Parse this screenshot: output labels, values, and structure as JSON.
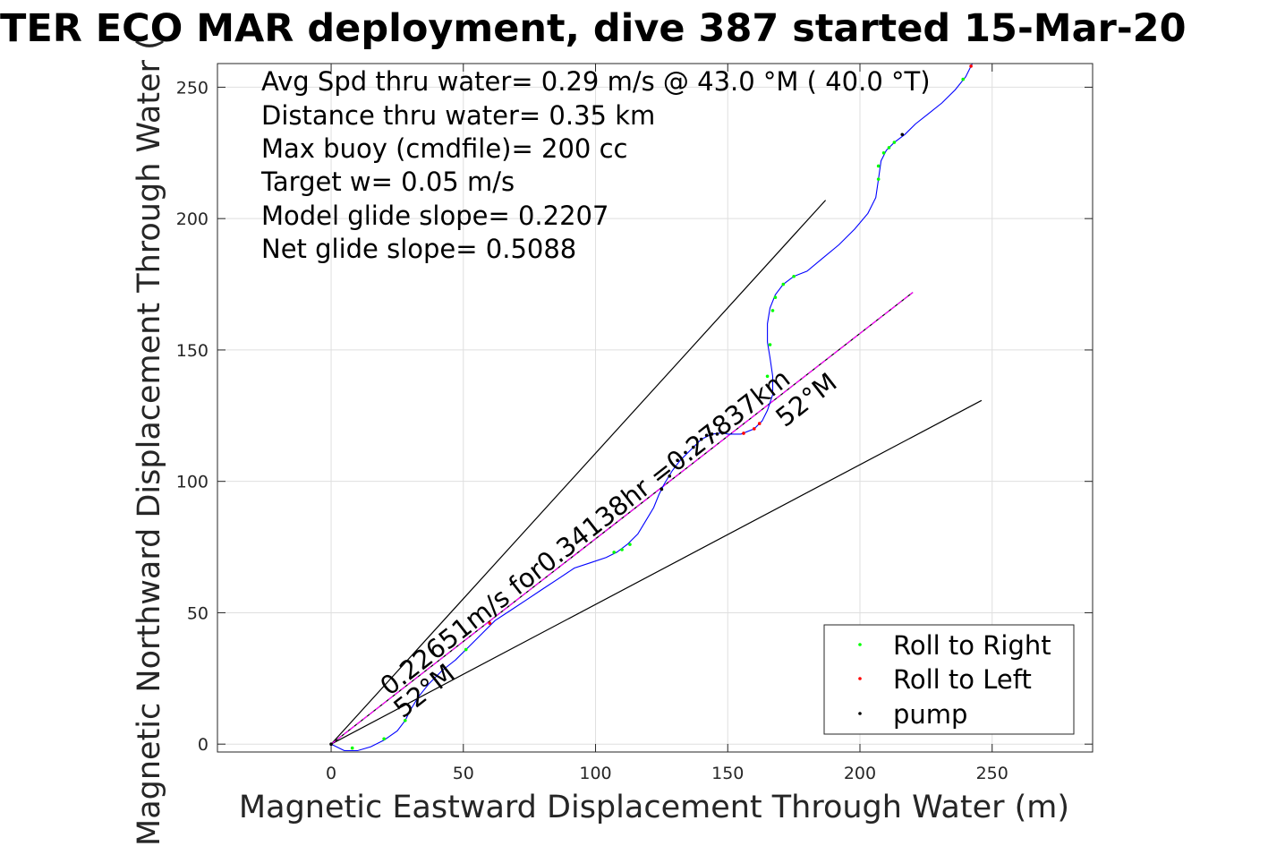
{
  "chart_data": {
    "type": "line",
    "title": "TER ECO MAR deployment, dive 387 started 15-Mar-20",
    "xlabel": "Magnetic Eastward Displacement Through Water (m)",
    "ylabel": "Magnetic Northward Displacement Through Water (",
    "xlim": [
      -43,
      288
    ],
    "ylim": [
      -3,
      259
    ],
    "xticks": [
      0,
      50,
      100,
      150,
      200,
      250
    ],
    "yticks": [
      0,
      50,
      100,
      150,
      200,
      250
    ],
    "grid": true,
    "stats": [
      "Avg Spd thru water=  0.29 m/s @  43.0 °M ( 40.0 °T)",
      "Distance thru water=  0.35 km",
      "Max buoy (cmdfile)= 200 cc",
      "Target w= 0.05 m/s",
      "Model glide slope= 0.2207",
      "Net glide slope= 0.5088"
    ],
    "annotations": {
      "heading_main": "0.22651m/s for0.34138hr =0.27837km",
      "heading_upper": "52°M",
      "heading_lower": "52°M"
    },
    "legend": {
      "placement": "bottom-right",
      "entries": [
        {
          "label": "Roll to Right",
          "color": "#00ff00"
        },
        {
          "label": "Roll to Left",
          "color": "#ff0000"
        },
        {
          "label": "pump",
          "color": "#000000"
        }
      ]
    },
    "track_color": "#0000ff",
    "heading_line_color": "#ff00ff",
    "cone_line_color": "#000000",
    "track": [
      [
        0,
        0
      ],
      [
        2,
        -1
      ],
      [
        5,
        -2.5
      ],
      [
        10,
        -2.5
      ],
      [
        15,
        -1
      ],
      [
        20,
        1.5
      ],
      [
        25,
        5
      ],
      [
        28,
        9
      ],
      [
        30,
        13
      ],
      [
        33,
        18
      ],
      [
        37,
        23
      ],
      [
        42,
        28
      ],
      [
        47,
        32
      ],
      [
        52,
        37
      ],
      [
        57,
        42
      ],
      [
        62,
        47
      ],
      [
        68,
        51
      ],
      [
        74,
        55
      ],
      [
        80,
        59
      ],
      [
        86,
        63
      ],
      [
        92,
        67
      ],
      [
        98,
        69
      ],
      [
        104,
        71
      ],
      [
        108,
        73
      ],
      [
        112,
        76
      ],
      [
        116,
        80
      ],
      [
        119,
        85
      ],
      [
        122,
        90
      ],
      [
        124,
        95
      ],
      [
        126,
        99
      ],
      [
        129,
        104
      ],
      [
        132,
        108
      ],
      [
        136,
        112
      ],
      [
        140,
        116
      ],
      [
        144,
        118
      ],
      [
        148,
        118.5
      ],
      [
        150,
        118
      ],
      [
        155,
        118
      ],
      [
        160,
        120
      ],
      [
        163,
        123
      ],
      [
        165,
        127
      ],
      [
        167,
        133
      ],
      [
        167,
        140
      ],
      [
        166,
        147
      ],
      [
        165,
        153
      ],
      [
        165,
        160
      ],
      [
        166,
        166
      ],
      [
        168,
        171
      ],
      [
        171,
        175
      ],
      [
        175,
        178
      ],
      [
        180,
        180
      ],
      [
        186,
        185
      ],
      [
        192,
        190
      ],
      [
        198,
        196
      ],
      [
        203,
        202
      ],
      [
        206,
        208
      ],
      [
        207,
        215
      ],
      [
        208,
        222
      ],
      [
        210,
        226
      ],
      [
        213,
        229
      ],
      [
        217,
        232
      ],
      [
        221,
        236
      ],
      [
        226,
        240
      ],
      [
        231,
        244
      ],
      [
        236,
        249
      ],
      [
        240,
        254
      ],
      [
        243,
        260
      ]
    ],
    "roll_right_points": [
      [
        8,
        -1.5
      ],
      [
        20,
        2
      ],
      [
        28,
        9
      ],
      [
        51,
        36
      ],
      [
        107,
        73
      ],
      [
        110,
        74
      ],
      [
        113,
        76
      ],
      [
        165,
        140
      ],
      [
        166,
        152
      ],
      [
        167,
        165
      ],
      [
        168,
        170
      ],
      [
        171,
        175
      ],
      [
        175,
        178
      ],
      [
        207,
        215
      ],
      [
        207,
        220
      ],
      [
        209,
        225
      ],
      [
        211,
        227
      ],
      [
        213,
        229
      ],
      [
        239,
        253
      ]
    ],
    "roll_left_points": [
      [
        60,
        46
      ],
      [
        156,
        118.3
      ],
      [
        160,
        120
      ],
      [
        162,
        122
      ],
      [
        242,
        258
      ]
    ],
    "pump_points": [
      [
        0,
        0
      ],
      [
        125,
        97
      ],
      [
        128,
        102
      ],
      [
        131,
        108
      ],
      [
        134,
        111
      ],
      [
        137,
        113
      ],
      [
        140,
        116
      ],
      [
        142,
        117.5
      ],
      [
        144,
        118
      ],
      [
        146,
        118
      ],
      [
        148,
        118.4
      ],
      [
        216,
        232
      ]
    ],
    "heading_line": [
      [
        0,
        0
      ],
      [
        220,
        171.9
      ]
    ],
    "cone_upper": [
      [
        0,
        0
      ],
      [
        187,
        207
      ]
    ],
    "cone_lower": [
      [
        0,
        0
      ],
      [
        246,
        130.8
      ]
    ]
  }
}
